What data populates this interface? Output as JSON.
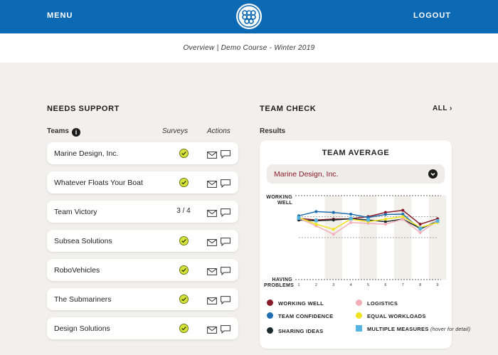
{
  "header": {
    "menu_label": "MENU",
    "logout_label": "LOGOUT",
    "logo_icon": "teams-logo-icon",
    "breadcrumb": "Overview | Demo Course - Winter 2019"
  },
  "colors": {
    "brand_blue": "#0c69b4",
    "working_well": "#8a1b2b",
    "team_confidence": "#1f6fb0",
    "sharing_ideas": "#1d2b2e",
    "logistics": "#f2adb7",
    "equal_workloads": "#f0e21c",
    "multiple_measures": "#56b4e3"
  },
  "needs_support": {
    "title": "NEEDS SUPPORT",
    "col_teams": "Teams",
    "col_surveys": "Surveys",
    "col_actions": "Actions",
    "teams": [
      {
        "name": "Marine Design, Inc.",
        "survey": "check"
      },
      {
        "name": "Whatever Floats Your Boat",
        "survey": "check"
      },
      {
        "name": "Team Victory",
        "survey": "3 / 4"
      },
      {
        "name": "Subsea Solutions",
        "survey": "check"
      },
      {
        "name": "RoboVehicles",
        "survey": "check"
      },
      {
        "name": "The Submariners",
        "survey": "check"
      },
      {
        "name": "Design Solutions",
        "survey": "check"
      }
    ]
  },
  "team_check": {
    "title": "TEAM CHECK",
    "all_label": "ALL",
    "results_label": "Results",
    "card_title": "TEAM AVERAGE",
    "selected_team": "Marine Design, Inc.",
    "y_top_label_1": "WORKING",
    "y_top_label_2": "WELL",
    "y_bottom_label_1": "HAVING",
    "y_bottom_label_2": "PROBLEMS",
    "legend": {
      "working_well": "WORKING WELL",
      "team_confidence": "TEAM CONFIDENCE",
      "sharing_ideas": "SHARING IDEAS",
      "logistics": "LOGISTICS",
      "equal_workloads": "EQUAL WORKLOADS",
      "multiple_measures": "MULTIPLE MEASURES",
      "multiple_measures_hint": "(hover for detail)"
    }
  },
  "chart_data": {
    "type": "line",
    "x": [
      "1",
      "2",
      "3",
      "4",
      "5",
      "6",
      "7",
      "8",
      "9"
    ],
    "ylim": [
      -1,
      1
    ],
    "series": [
      {
        "name": "WORKING WELL",
        "color": "#8a1b2b",
        "values": [
          0.46,
          0.42,
          0.44,
          0.45,
          0.5,
          0.6,
          0.65,
          0.32,
          0.45
        ]
      },
      {
        "name": "TEAM CONFIDENCE",
        "color": "#1f6fb0",
        "values": [
          0.52,
          0.62,
          0.6,
          0.56,
          0.48,
          0.55,
          0.56,
          0.2,
          0.4
        ]
      },
      {
        "name": "SHARING IDEAS",
        "color": "#1d2b2e",
        "values": [
          0.42,
          0.4,
          0.42,
          0.45,
          0.42,
          0.38,
          0.44,
          0.22,
          0.38
        ]
      },
      {
        "name": "LOGISTICS",
        "color": "#f2adb7",
        "values": [
          0.46,
          0.28,
          0.08,
          0.36,
          0.34,
          0.32,
          0.44,
          0.12,
          0.4
        ]
      },
      {
        "name": "EQUAL WORKLOADS",
        "color": "#f0e21c",
        "values": [
          0.48,
          0.32,
          0.2,
          0.44,
          0.38,
          0.44,
          0.5,
          0.24,
          0.36
        ]
      }
    ],
    "multiple_measures_points": [
      1,
      2,
      4,
      5,
      8,
      9
    ]
  }
}
